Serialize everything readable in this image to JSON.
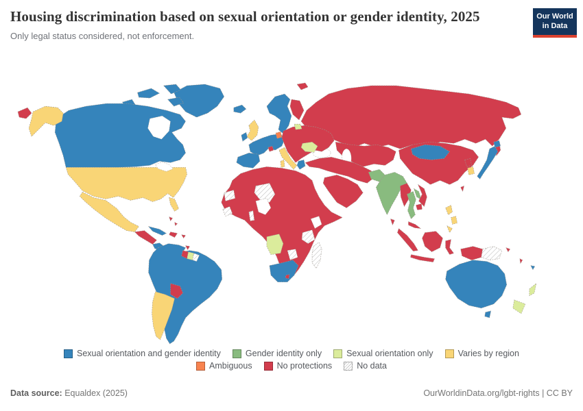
{
  "header": {
    "logo": {
      "line1": "Our World",
      "line2": "in Data",
      "bg": "#14355C",
      "stripe": "#DC4230"
    }
  },
  "chart_data": {
    "type": "choropleth_map",
    "title": "Housing discrimination based on sexual orientation or gender identity, 2025",
    "subtitle": "Only legal status considered, not enforcement.",
    "year": "2025",
    "legend_position": "bottom-center",
    "categories": [
      {
        "id": "so_gi",
        "label": "Sexual orientation and gender identity",
        "color": "#3584BB"
      },
      {
        "id": "gi",
        "label": "Gender identity only",
        "color": "#89BB7F"
      },
      {
        "id": "so",
        "label": "Sexual orientation only",
        "color": "#DBEC9C"
      },
      {
        "id": "varies",
        "label": "Varies by region",
        "color": "#F9D576"
      },
      {
        "id": "ambiguous",
        "label": "Ambiguous",
        "color": "#F8834F"
      },
      {
        "id": "none",
        "label": "No protections",
        "color": "#D23D4D"
      },
      {
        "id": "no_data",
        "label": "No data",
        "color": "hatch"
      }
    ],
    "country_categories": {
      "greenland": "so_gi",
      "canadian-arctic": "so_gi",
      "canada": "so_gi",
      "alaska": "varies",
      "chukotka": "none",
      "usa": "varies",
      "mexico": "varies",
      "central-america-north": "none",
      "central-america-south": "so_gi",
      "cuba": "so_gi",
      "hispaniola": "none",
      "bahamas": "none",
      "puerto-rico": "none",
      "trinidad": "none",
      "south-america-main": "so_gi",
      "guyana": "none",
      "suriname": "so",
      "french-guiana": "no_data",
      "paraguay": "none",
      "argentina": "varies",
      "iceland": "so_gi",
      "norway-sweden": "so_gi",
      "finland": "none",
      "denmark": "ambiguous",
      "uk": "varies",
      "ireland": "so_gi",
      "western-europe": "so_gi",
      "iberia": "so_gi",
      "switzerland": "none",
      "italy": "varies",
      "eastern-europe": "none",
      "baltic-states": "so",
      "romania": "so",
      "greece": "so_gi",
      "svalbard": "none",
      "russia": "none",
      "central-asia": "none",
      "middle-east": "none",
      "arabia": "none",
      "pakistan": "gi",
      "india": "gi",
      "sri-lanka": "none",
      "china": "none",
      "mongolia": "so_gi",
      "north-korea": "none",
      "south-korea": "varies",
      "japan": "so_gi",
      "taiwan": "none",
      "myanmar": "none",
      "thailand": "gi",
      "laos": "gi",
      "vietnam": "none",
      "cambodia": "none",
      "malaysia": "none",
      "sumatra": "none",
      "java": "none",
      "borneo": "none",
      "sulawesi": "none",
      "philippines": "varies",
      "indonesian-papua": "none",
      "papua-new-guinea": "no_data",
      "africa-main": "none",
      "western-sahara": "no_data",
      "guinea-region": "no_data",
      "niger": "no_data",
      "togo-benin": "no_data",
      "tanzania": "no_data",
      "angola": "so",
      "zimbabwe": "no_data",
      "south-africa": "so_gi",
      "lesotho": "none",
      "madagascar": "no_data",
      "australia": "so_gi",
      "tasmania": "so_gi",
      "new-zealand": "so",
      "fiji": "so_gi",
      "vanuatu": "none",
      "solomon-islands": "none"
    }
  },
  "footer": {
    "source_label": "Data source:",
    "source_value": " Equaldex (2025)",
    "right_text": "OurWorldinData.org/lgbt-rights | CC BY"
  }
}
